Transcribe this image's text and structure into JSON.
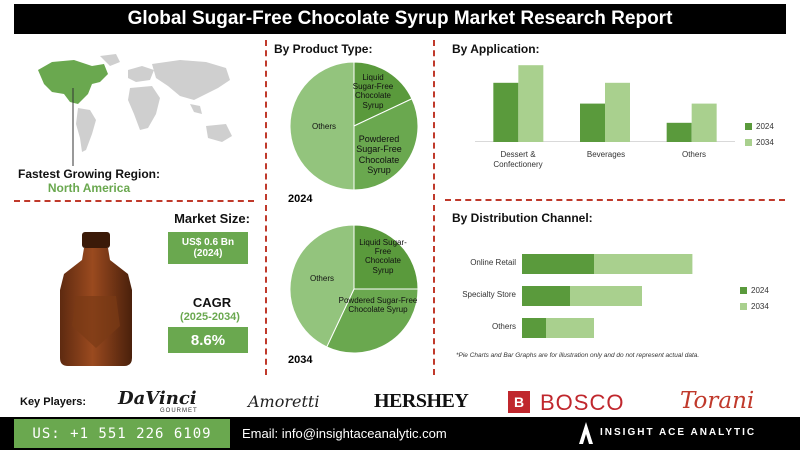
{
  "title": "Global Sugar-Free Chocolate Syrup Market Research Report",
  "region": {
    "heading": "Fastest Growing Region:",
    "value": "North America"
  },
  "market_size": {
    "heading": "Market Size:",
    "value": "US$ 0.6 Bn",
    "year": "(2024)"
  },
  "cagr": {
    "heading": "CAGR",
    "period": "(2025-2034)",
    "value": "8.6%"
  },
  "product_type": {
    "heading": "By Product Type:",
    "pie_2024": {
      "year": "2024",
      "labels": {
        "liquid": "Liquid Sugar-Free Chocolate Syrup",
        "powdered": "Powdered Sugar-Free Chocolate Syrup",
        "others": "Others"
      }
    },
    "pie_2034": {
      "year": "2034",
      "labels": {
        "liquid": "Liquid Sugar-Free Chocolate Syrup",
        "powdered": "Powdered Sugar-Free Chocolate Syrup",
        "others": "Others"
      }
    }
  },
  "application": {
    "heading": "By Application:"
  },
  "distribution": {
    "heading": "By Distribution Channel:"
  },
  "disclaimer": "*Pie Charts and Bar Graphs are for illustration only and do not represent actual data.",
  "key_players": {
    "label": "Key Players:",
    "logos": {
      "davinci": "DaVinci",
      "davinci_sub": "GOURMET",
      "amoretti": "Amoretti",
      "hershey": "HERSHEY",
      "bosco": "BOSCO",
      "torani": "Torani"
    }
  },
  "footer": {
    "phone": "US: +1 551 226 6109",
    "email": "Email: info@insightaceanalytic.com",
    "brand": "INSIGHT ACE ANALYTIC"
  },
  "colors": {
    "dark_green": "#5a9a3c",
    "light_green": "#a9d08e",
    "mid_green": "#6aa84f",
    "accent_red": "#c0392b"
  },
  "icons": {
    "map": "world-map",
    "bottle": "syrup-bottle-illustration",
    "logo": "insight-ace-logo-icon"
  },
  "chart_data": [
    {
      "type": "pie",
      "title": "2024",
      "categories": [
        "Liquid Sugar-Free Chocolate Syrup",
        "Powdered Sugar-Free Chocolate Syrup",
        "Others"
      ],
      "values": [
        18,
        32,
        50
      ],
      "colors": [
        "#5a9a3c",
        "#6aa84f",
        "#93c47d"
      ]
    },
    {
      "type": "pie",
      "title": "2034",
      "categories": [
        "Liquid Sugar-Free Chocolate Syrup",
        "Powdered Sugar-Free Chocolate Syrup",
        "Others"
      ],
      "values": [
        25,
        32,
        43
      ],
      "colors": [
        "#5a9a3c",
        "#6aa84f",
        "#93c47d"
      ]
    },
    {
      "type": "bar",
      "orientation": "vertical",
      "categories": [
        "Dessert & Confectionery",
        "Beverages",
        "Others"
      ],
      "series": [
        {
          "name": "2024",
          "values": [
            37,
            24,
            12
          ],
          "color": "#5a9a3c"
        },
        {
          "name": "2034",
          "values": [
            48,
            37,
            24
          ],
          "color": "#a9d08e"
        }
      ],
      "legend": "right"
    },
    {
      "type": "bar",
      "orientation": "horizontal",
      "stacked": true,
      "categories": [
        "Online Retail",
        "Specialty Store",
        "Others"
      ],
      "series": [
        {
          "name": "2024",
          "values": [
            30,
            20,
            10
          ],
          "color": "#5a9a3c"
        },
        {
          "name": "2034",
          "values": [
            41,
            30,
            20
          ],
          "color": "#a9d08e"
        }
      ],
      "legend": "right"
    }
  ]
}
